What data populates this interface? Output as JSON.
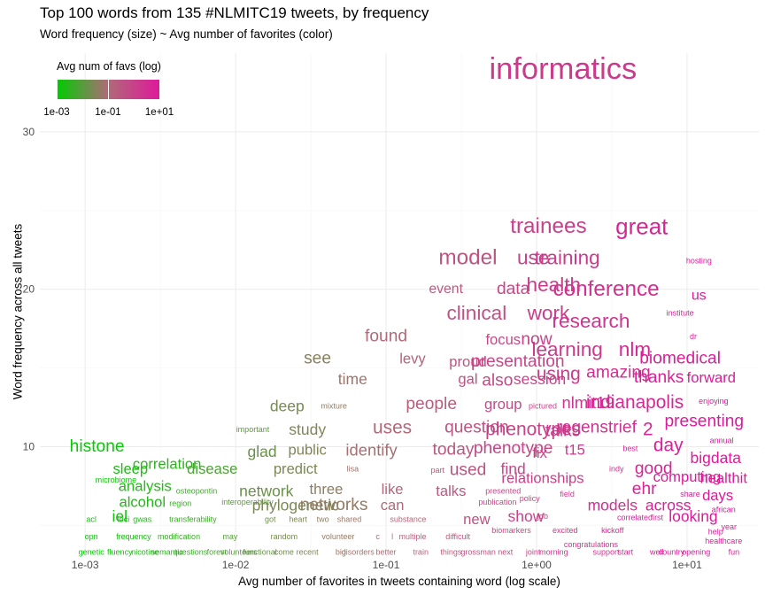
{
  "chart_data": {
    "type": "scatter",
    "title": "Top 100 words from 135 #NLMITC19 tweets, by frequency",
    "subtitle": "Word frequency (size) ~ Avg number of favorites (color)",
    "xlabel": "Avg number of favorites in tweets containing word (log scale)",
    "ylabel": "Word frequency across all tweets",
    "x_scale": "log10",
    "xlim": [
      0.0005,
      30
    ],
    "ylim": [
      3,
      35
    ],
    "x_ticks": [
      {
        "value": 0.001,
        "label": "1e-03"
      },
      {
        "value": 0.01,
        "label": "1e-02"
      },
      {
        "value": 0.1,
        "label": "1e-01"
      },
      {
        "value": 1,
        "label": "1e+00"
      },
      {
        "value": 10,
        "label": "1e+01"
      }
    ],
    "y_ticks": [
      {
        "value": 10,
        "label": "10"
      },
      {
        "value": 20,
        "label": "20"
      },
      {
        "value": 30,
        "label": "30"
      }
    ],
    "grid": true,
    "legend": {
      "title": "Avg num of favs (log)",
      "placement": "top-left",
      "ticks": [
        {
          "value": 0.001,
          "label": "1e-03"
        },
        {
          "value": 0.1,
          "label": "1e-01"
        },
        {
          "value": 10,
          "label": "1e+01"
        }
      ],
      "colors": [
        "#00cc00",
        "#b06a78",
        "#dd1a9a"
      ]
    },
    "words": [
      {
        "word": "informatics",
        "x": 1.5,
        "y": 34,
        "freq": 34
      },
      {
        "word": "great",
        "x": 5,
        "y": 24,
        "freq": 24
      },
      {
        "word": "trainees",
        "x": 1.2,
        "y": 24,
        "freq": 22
      },
      {
        "word": "model",
        "x": 0.35,
        "y": 22,
        "freq": 22
      },
      {
        "word": "use",
        "x": 0.95,
        "y": 22,
        "freq": 20
      },
      {
        "word": "training",
        "x": 1.6,
        "y": 22,
        "freq": 20
      },
      {
        "word": "hosting",
        "x": 12,
        "y": 21.8,
        "freq": 4
      },
      {
        "word": "conference",
        "x": 2.9,
        "y": 20,
        "freq": 22
      },
      {
        "word": "health",
        "x": 1.3,
        "y": 20.3,
        "freq": 20
      },
      {
        "word": "data",
        "x": 0.7,
        "y": 20,
        "freq": 16
      },
      {
        "word": "event",
        "x": 0.25,
        "y": 20,
        "freq": 12
      },
      {
        "word": "us",
        "x": 12,
        "y": 19.6,
        "freq": 12
      },
      {
        "word": "clinical",
        "x": 0.4,
        "y": 18.5,
        "freq": 20
      },
      {
        "word": "work",
        "x": 1.2,
        "y": 18.5,
        "freq": 20
      },
      {
        "word": "research",
        "x": 2.3,
        "y": 18,
        "freq": 20
      },
      {
        "word": "institute",
        "x": 9,
        "y": 18.5,
        "freq": 4
      },
      {
        "word": "dr",
        "x": 11,
        "y": 17,
        "freq": 4
      },
      {
        "word": "found",
        "x": 0.1,
        "y": 17,
        "freq": 16
      },
      {
        "word": "focus",
        "x": 0.6,
        "y": 16.8,
        "freq": 13
      },
      {
        "word": "now",
        "x": 1.0,
        "y": 16.8,
        "freq": 16
      },
      {
        "word": "learning",
        "x": 1.6,
        "y": 16.2,
        "freq": 20
      },
      {
        "word": "nlm",
        "x": 4.5,
        "y": 16.2,
        "freq": 20
      },
      {
        "word": "see",
        "x": 0.035,
        "y": 15.6,
        "freq": 16
      },
      {
        "word": "levy",
        "x": 0.15,
        "y": 15.6,
        "freq": 13
      },
      {
        "word": "proud",
        "x": 0.35,
        "y": 15.4,
        "freq": 13
      },
      {
        "word": "presentation",
        "x": 0.75,
        "y": 15.4,
        "freq": 16
      },
      {
        "word": "biomedical",
        "x": 9,
        "y": 15.6,
        "freq": 16
      },
      {
        "word": "using",
        "x": 1.4,
        "y": 14.6,
        "freq": 18
      },
      {
        "word": "amazing",
        "x": 3.5,
        "y": 14.7,
        "freq": 16
      },
      {
        "word": "thanks",
        "x": 6.5,
        "y": 14.4,
        "freq": 16
      },
      {
        "word": "forward",
        "x": 14.5,
        "y": 14.4,
        "freq": 13
      },
      {
        "word": "time",
        "x": 0.06,
        "y": 14.3,
        "freq": 14
      },
      {
        "word": "gal",
        "x": 0.35,
        "y": 14.3,
        "freq": 13
      },
      {
        "word": "also",
        "x": 0.55,
        "y": 14.2,
        "freq": 16
      },
      {
        "word": "session",
        "x": 1.05,
        "y": 14.3,
        "freq": 14
      },
      {
        "word": "nlmit19",
        "x": 2.2,
        "y": 12.8,
        "freq": 15
      },
      {
        "word": "indianapolis",
        "x": 4.5,
        "y": 12.8,
        "freq": 18
      },
      {
        "word": "enjoying",
        "x": 15,
        "y": 12.9,
        "freq": 4
      },
      {
        "word": "deep",
        "x": 0.022,
        "y": 12.6,
        "freq": 14
      },
      {
        "word": "mixture",
        "x": 0.045,
        "y": 12.6,
        "freq": 4
      },
      {
        "word": "people",
        "x": 0.2,
        "y": 12.7,
        "freq": 16
      },
      {
        "word": "group",
        "x": 0.6,
        "y": 12.7,
        "freq": 13
      },
      {
        "word": "pictured",
        "x": 1.1,
        "y": 12.6,
        "freq": 4
      },
      {
        "word": "presenting",
        "x": 13,
        "y": 11.6,
        "freq": 16
      },
      {
        "word": "important",
        "x": 0.013,
        "y": 11.1,
        "freq": 4
      },
      {
        "word": "study",
        "x": 0.03,
        "y": 11.1,
        "freq": 14
      },
      {
        "word": "uses",
        "x": 0.11,
        "y": 11.2,
        "freq": 18
      },
      {
        "word": "question",
        "x": 0.4,
        "y": 11.2,
        "freq": 16
      },
      {
        "word": "phenotypes",
        "x": 0.95,
        "y": 11.1,
        "freq": 18
      },
      {
        "word": "talk",
        "x": 1.4,
        "y": 11,
        "freq": 16
      },
      {
        "word": "regenstrief",
        "x": 2.5,
        "y": 11.2,
        "freq": 16
      },
      {
        "word": "2",
        "x": 5.5,
        "y": 11.1,
        "freq": 18
      },
      {
        "word": "annual",
        "x": 17,
        "y": 10.4,
        "freq": 4
      },
      {
        "word": "glad",
        "x": 0.015,
        "y": 9.7,
        "freq": 14
      },
      {
        "word": "public",
        "x": 0.03,
        "y": 9.8,
        "freq": 13
      },
      {
        "word": "identify",
        "x": 0.08,
        "y": 9.8,
        "freq": 15
      },
      {
        "word": "today",
        "x": 0.28,
        "y": 9.8,
        "freq": 16
      },
      {
        "word": "phenotype",
        "x": 0.7,
        "y": 9.9,
        "freq": 16
      },
      {
        "word": "fix",
        "x": 1.05,
        "y": 9.6,
        "freq": 13
      },
      {
        "word": "t15",
        "x": 1.8,
        "y": 9.8,
        "freq": 13
      },
      {
        "word": "best",
        "x": 4.2,
        "y": 9.9,
        "freq": 4
      },
      {
        "word": "day",
        "x": 7.5,
        "y": 10.1,
        "freq": 18
      },
      {
        "word": "bigdata",
        "x": 15.5,
        "y": 9.3,
        "freq": 14
      },
      {
        "word": "histone",
        "x": 0.0012,
        "y": 10,
        "freq": 16
      },
      {
        "word": "sleep",
        "x": 0.002,
        "y": 8.6,
        "freq": 13
      },
      {
        "word": "correlation",
        "x": 0.0035,
        "y": 8.9,
        "freq": 13
      },
      {
        "word": "disease",
        "x": 0.007,
        "y": 8.6,
        "freq": 13
      },
      {
        "word": "predict",
        "x": 0.025,
        "y": 8.6,
        "freq": 13
      },
      {
        "word": "lisa",
        "x": 0.06,
        "y": 8.6,
        "freq": 4
      },
      {
        "word": "part",
        "x": 0.22,
        "y": 8.5,
        "freq": 4
      },
      {
        "word": "used",
        "x": 0.35,
        "y": 8.5,
        "freq": 16
      },
      {
        "word": "find",
        "x": 0.7,
        "y": 8.6,
        "freq": 14
      },
      {
        "word": "indy",
        "x": 3.4,
        "y": 8.6,
        "freq": 4
      },
      {
        "word": "good",
        "x": 6,
        "y": 8.6,
        "freq": 16
      },
      {
        "word": "computing",
        "x": 10,
        "y": 8.1,
        "freq": 13
      },
      {
        "word": "healthit",
        "x": 17.5,
        "y": 8.0,
        "freq": 13
      },
      {
        "word": "microbiome",
        "x": 0.0016,
        "y": 7.9,
        "freq": 4
      },
      {
        "word": "analysis",
        "x": 0.0025,
        "y": 7.5,
        "freq": 13
      },
      {
        "word": "osteopontin",
        "x": 0.0055,
        "y": 7.2,
        "freq": 4
      },
      {
        "word": "network",
        "x": 0.016,
        "y": 7.2,
        "freq": 14
      },
      {
        "word": "three",
        "x": 0.04,
        "y": 7.3,
        "freq": 13
      },
      {
        "word": "like",
        "x": 0.11,
        "y": 7.3,
        "freq": 13
      },
      {
        "word": "talks",
        "x": 0.27,
        "y": 7.2,
        "freq": 13
      },
      {
        "word": "presented",
        "x": 0.6,
        "y": 7.2,
        "freq": 4
      },
      {
        "word": "relationships",
        "x": 1.1,
        "y": 8.0,
        "freq": 13
      },
      {
        "word": "field",
        "x": 1.6,
        "y": 7.0,
        "freq": 4
      },
      {
        "word": "ehr",
        "x": 5.2,
        "y": 7.3,
        "freq": 16
      },
      {
        "word": "share",
        "x": 10.5,
        "y": 7.0,
        "freq": 4
      },
      {
        "word": "days",
        "x": 16,
        "y": 6.9,
        "freq": 13
      },
      {
        "word": "alcohol",
        "x": 0.0024,
        "y": 6.5,
        "freq": 13
      },
      {
        "word": "region",
        "x": 0.0043,
        "y": 6.4,
        "freq": 4
      },
      {
        "word": "interoperability",
        "x": 0.012,
        "y": 6.5,
        "freq": 4
      },
      {
        "word": "phylogenetic",
        "x": 0.025,
        "y": 6.3,
        "freq": 14
      },
      {
        "word": "networks",
        "x": 0.045,
        "y": 6.3,
        "freq": 16
      },
      {
        "word": "can",
        "x": 0.11,
        "y": 6.3,
        "freq": 13
      },
      {
        "word": "publication",
        "x": 0.55,
        "y": 6.5,
        "freq": 4
      },
      {
        "word": "policy",
        "x": 0.9,
        "y": 6.7,
        "freq": 4
      },
      {
        "word": "models",
        "x": 3.2,
        "y": 6.3,
        "freq": 14
      },
      {
        "word": "across",
        "x": 7.5,
        "y": 6.3,
        "freq": 14
      },
      {
        "word": "african",
        "x": 17.5,
        "y": 6.0,
        "freq": 4
      },
      {
        "word": "iel",
        "x": 0.0017,
        "y": 5.6,
        "freq": 14
      },
      {
        "word": "show",
        "x": 0.85,
        "y": 5.6,
        "freq": 14
      },
      {
        "word": "job",
        "x": 1.1,
        "y": 5.6,
        "freq": 4
      },
      {
        "word": "correlated",
        "x": 4.5,
        "y": 5.5,
        "freq": 4
      },
      {
        "word": "first",
        "x": 6.3,
        "y": 5.5,
        "freq": 4
      },
      {
        "word": "looking",
        "x": 11,
        "y": 5.6,
        "freq": 14
      },
      {
        "word": "new",
        "x": 0.4,
        "y": 5.4,
        "freq": 13
      },
      {
        "word": "acl",
        "x": 0.0011,
        "y": 5.4,
        "freq": 4
      },
      {
        "word": "loci",
        "x": 0.0018,
        "y": 5.4,
        "freq": 4
      },
      {
        "word": "gwas",
        "x": 0.0024,
        "y": 5.4,
        "freq": 4
      },
      {
        "word": "transferability",
        "x": 0.0052,
        "y": 5.4,
        "freq": 4
      },
      {
        "word": "got",
        "x": 0.017,
        "y": 5.4,
        "freq": 4
      },
      {
        "word": "heart",
        "x": 0.026,
        "y": 5.4,
        "freq": 4
      },
      {
        "word": "two",
        "x": 0.038,
        "y": 5.4,
        "freq": 4
      },
      {
        "word": "shared",
        "x": 0.057,
        "y": 5.4,
        "freq": 4
      },
      {
        "word": "substance",
        "x": 0.14,
        "y": 5.4,
        "freq": 4
      },
      {
        "word": "year",
        "x": 19,
        "y": 4.9,
        "freq": 4
      },
      {
        "word": "biomarkers",
        "x": 0.68,
        "y": 4.7,
        "freq": 4
      },
      {
        "word": "excited",
        "x": 1.55,
        "y": 4.7,
        "freq": 4
      },
      {
        "word": "kickoff",
        "x": 3.2,
        "y": 4.7,
        "freq": 4
      },
      {
        "word": "help",
        "x": 15.5,
        "y": 4.6,
        "freq": 4
      },
      {
        "word": "opn",
        "x": 0.0011,
        "y": 4.3,
        "freq": 4
      },
      {
        "word": "frequency",
        "x": 0.0021,
        "y": 4.3,
        "freq": 4
      },
      {
        "word": "modification",
        "x": 0.0042,
        "y": 4.3,
        "freq": 4
      },
      {
        "word": "may",
        "x": 0.0092,
        "y": 4.3,
        "freq": 4
      },
      {
        "word": "random",
        "x": 0.021,
        "y": 4.3,
        "freq": 4
      },
      {
        "word": "volunteer",
        "x": 0.048,
        "y": 4.3,
        "freq": 4
      },
      {
        "word": "c",
        "x": 0.088,
        "y": 4.3,
        "freq": 4
      },
      {
        "word": "l",
        "x": 0.11,
        "y": 4.3,
        "freq": 4
      },
      {
        "word": "multiple",
        "x": 0.15,
        "y": 4.3,
        "freq": 4
      },
      {
        "word": "difficult",
        "x": 0.3,
        "y": 4.3,
        "freq": 4
      },
      {
        "word": "healthcare",
        "x": 17.5,
        "y": 4.0,
        "freq": 4
      },
      {
        "word": "congratulations",
        "x": 2.3,
        "y": 3.8,
        "freq": 4
      },
      {
        "word": "genetic",
        "x": 0.0011,
        "y": 3.3,
        "freq": 4
      },
      {
        "word": "fluency",
        "x": 0.0017,
        "y": 3.3,
        "freq": 4
      },
      {
        "word": "nicotine",
        "x": 0.0025,
        "y": 3.3,
        "freq": 4
      },
      {
        "word": "semantic",
        "x": 0.0035,
        "y": 3.3,
        "freq": 4
      },
      {
        "word": "questions",
        "x": 0.005,
        "y": 3.3,
        "freq": 4
      },
      {
        "word": "forest",
        "x": 0.0075,
        "y": 3.3,
        "freq": 4
      },
      {
        "word": "volunteers",
        "x": 0.0105,
        "y": 3.3,
        "freq": 4
      },
      {
        "word": "functional",
        "x": 0.0145,
        "y": 3.3,
        "freq": 4
      },
      {
        "word": "come",
        "x": 0.021,
        "y": 3.3,
        "freq": 4
      },
      {
        "word": "recent",
        "x": 0.03,
        "y": 3.3,
        "freq": 4
      },
      {
        "word": "big",
        "x": 0.05,
        "y": 3.3,
        "freq": 4
      },
      {
        "word": "disorders",
        "x": 0.065,
        "y": 3.3,
        "freq": 4
      },
      {
        "word": "better",
        "x": 0.1,
        "y": 3.3,
        "freq": 4
      },
      {
        "word": "train",
        "x": 0.17,
        "y": 3.3,
        "freq": 4
      },
      {
        "word": "things",
        "x": 0.27,
        "y": 3.3,
        "freq": 4
      },
      {
        "word": "grossman",
        "x": 0.41,
        "y": 3.3,
        "freq": 4
      },
      {
        "word": "next",
        "x": 0.62,
        "y": 3.3,
        "freq": 4
      },
      {
        "word": "joint",
        "x": 0.95,
        "y": 3.3,
        "freq": 4
      },
      {
        "word": "morning",
        "x": 1.3,
        "y": 3.3,
        "freq": 4
      },
      {
        "word": "support",
        "x": 2.9,
        "y": 3.3,
        "freq": 4
      },
      {
        "word": "start",
        "x": 3.9,
        "y": 3.3,
        "freq": 4
      },
      {
        "word": "well",
        "x": 6.3,
        "y": 3.3,
        "freq": 4
      },
      {
        "word": "country",
        "x": 7.9,
        "y": 3.3,
        "freq": 4
      },
      {
        "word": "opening",
        "x": 11.5,
        "y": 3.3,
        "freq": 4
      },
      {
        "word": "fun",
        "x": 20.5,
        "y": 3.3,
        "freq": 4
      }
    ]
  }
}
